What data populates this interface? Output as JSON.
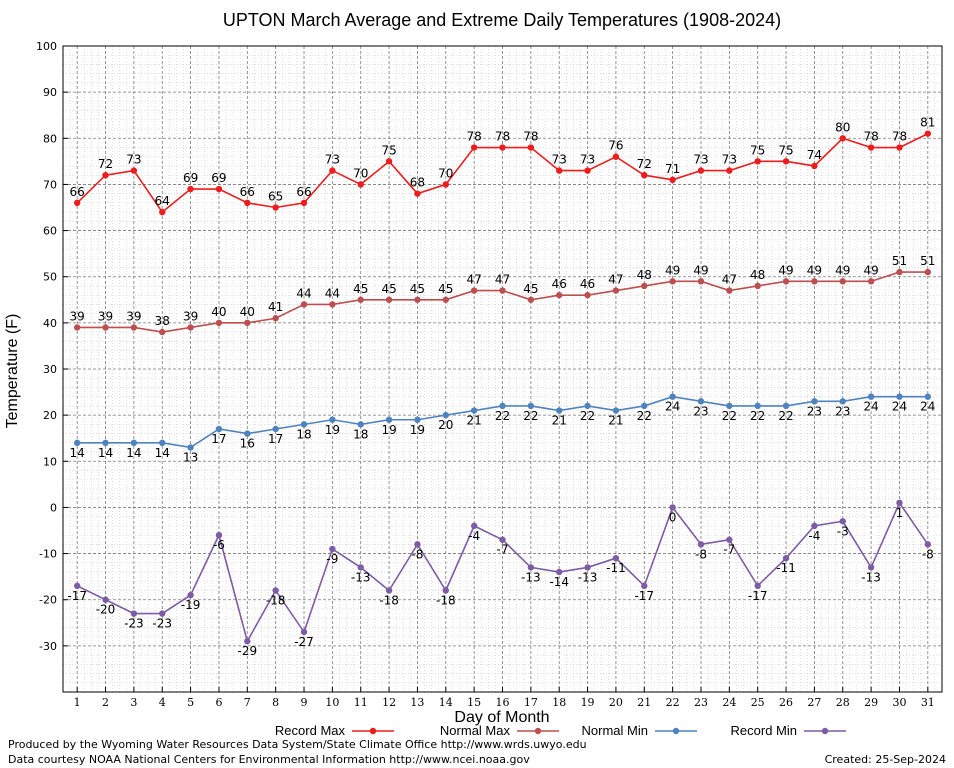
{
  "chart_data": {
    "type": "line",
    "title": "UPTON March Average and Extreme Daily Temperatures (1908-2024)",
    "xlabel": "Day of Month",
    "ylabel": "Temperature (F)",
    "ylim": [
      -40,
      100
    ],
    "yticks": [
      -30,
      -20,
      -10,
      0,
      10,
      20,
      30,
      40,
      50,
      60,
      70,
      80,
      90,
      100
    ],
    "x": [
      1,
      2,
      3,
      4,
      5,
      6,
      7,
      8,
      9,
      10,
      11,
      12,
      13,
      14,
      15,
      16,
      17,
      18,
      19,
      20,
      21,
      22,
      23,
      24,
      25,
      26,
      27,
      28,
      29,
      30,
      31
    ],
    "grid": true,
    "legend_position": "bottom",
    "series": [
      {
        "name": "Record Max",
        "color": "#ee1c1c",
        "values": [
          66,
          72,
          73,
          64,
          69,
          69,
          66,
          65,
          66,
          73,
          70,
          75,
          68,
          70,
          78,
          78,
          78,
          73,
          73,
          76,
          72,
          71,
          73,
          73,
          75,
          75,
          74,
          80,
          78,
          78,
          81
        ]
      },
      {
        "name": "Normal Max",
        "color": "#bc4f4f",
        "values": [
          39,
          39,
          39,
          38,
          39,
          40,
          40,
          41,
          44,
          44,
          45,
          45,
          45,
          45,
          47,
          47,
          45,
          46,
          46,
          47,
          48,
          49,
          49,
          47,
          48,
          49,
          49,
          49,
          49,
          51,
          51
        ]
      },
      {
        "name": "Normal Min",
        "color": "#4f83bf",
        "values": [
          14,
          14,
          14,
          14,
          13,
          17,
          16,
          17,
          18,
          19,
          18,
          19,
          19,
          20,
          21,
          22,
          22,
          21,
          22,
          21,
          22,
          24,
          23,
          22,
          22,
          22,
          23,
          23,
          24,
          24,
          24
        ]
      },
      {
        "name": "Record Min",
        "color": "#7c5ca4",
        "values": [
          -17,
          -20,
          -23,
          -23,
          -19,
          -6,
          -29,
          -18,
          -27,
          -9,
          -13,
          -18,
          -8,
          -18,
          -4,
          -7,
          -13,
          -14,
          -13,
          -11,
          -17,
          0,
          -8,
          -7,
          -17,
          -11,
          -4,
          -3,
          -13,
          1,
          -8
        ]
      }
    ]
  },
  "footer": {
    "produced_by": "Produced by the Wyoming Water Resources Data System/State Climate Office http://www.wrds.uwyo.edu",
    "courtesy": "Data courtesy NOAA National Centers for Environmental Information http://www.ncei.noaa.gov",
    "created": "Created:  25-Sep-2024"
  }
}
